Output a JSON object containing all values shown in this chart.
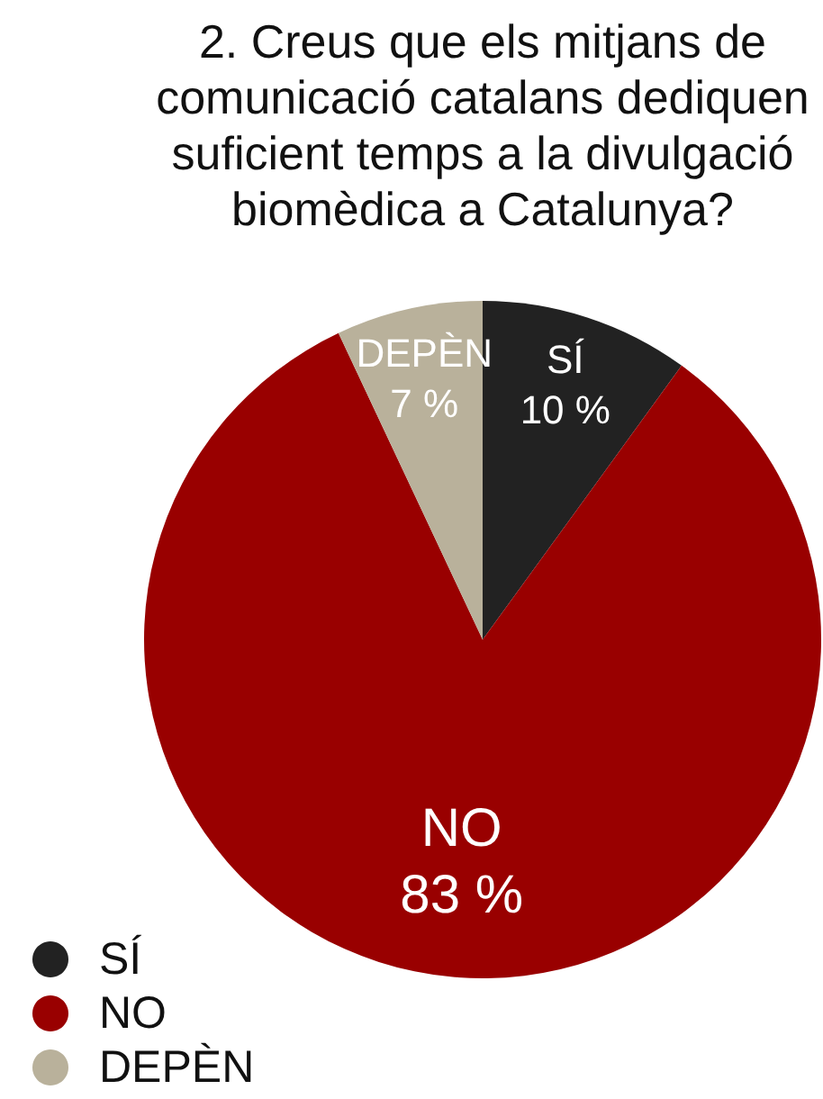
{
  "chart_data": {
    "type": "pie",
    "title": "2. Creus que els mitjans de comunicació catalans dediquen suficient temps a la divulgació biomèdica a Catalunya?",
    "categories": [
      "SÍ",
      "NO",
      "DEPÈN"
    ],
    "values": [
      10,
      83,
      7
    ],
    "value_labels": [
      "10 %",
      "83 %",
      "7 %"
    ],
    "colors": [
      "#222222",
      "#990000",
      "#b9b19b"
    ],
    "legend": "bottom left"
  }
}
